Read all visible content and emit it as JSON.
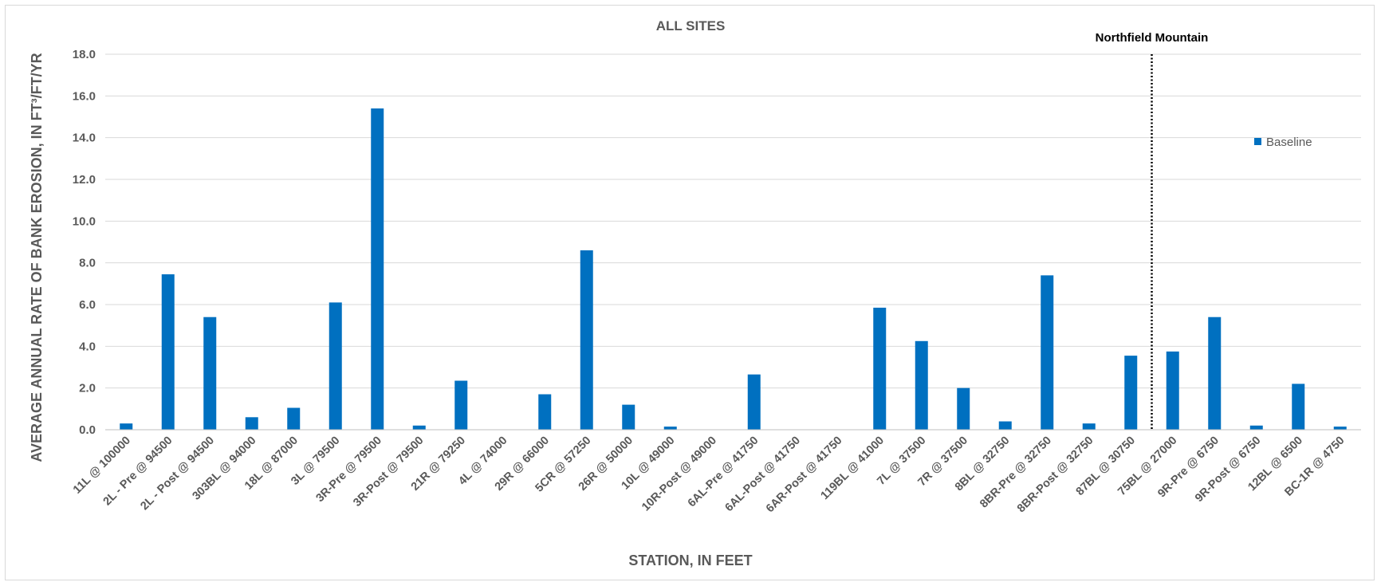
{
  "chart_data": {
    "type": "bar",
    "title": "ALL SITES",
    "xlabel": "STATION, IN FEET",
    "ylabel": "AVERAGE ANNUAL RATE OF BANK EROSION, IN FT³/FT/YR",
    "ylim": [
      0,
      18
    ],
    "yticks": [
      0,
      2,
      4,
      6,
      8,
      10,
      12,
      14,
      16,
      18
    ],
    "ytick_labels": [
      "0.0",
      "2.0",
      "4.0",
      "6.0",
      "8.0",
      "10.0",
      "12.0",
      "14.0",
      "16.0",
      "18.0"
    ],
    "grid": true,
    "legend_position": "right",
    "bar_color": "#0070c0",
    "categories": [
      "11L @ 100000",
      "2L - Pre @ 94500",
      "2L - Post @ 94500",
      "303BL @ 94000",
      "18L @ 87000",
      "3L @ 79500",
      "3R-Pre @ 79500",
      "3R-Post @ 79500",
      "21R @ 79250",
      "4L @ 74000",
      "29R @ 66000",
      "5CR @ 57250",
      "26R @ 50000",
      "10L @ 49000",
      "10R-Post @ 49000",
      "6AL-Pre @ 41750",
      "6AL-Post @ 41750",
      "6AR-Post @ 41750",
      "119BL @ 41000",
      "7L @ 37500",
      "7R @ 37500",
      "8BL @ 32750",
      "8BR-Pre @ 32750",
      "8BR-Post @ 32750",
      "87BL @ 30750",
      "75BL @ 27000",
      "9R-Pre @ 6750",
      "9R-Post @ 6750",
      "12BL @ 6500",
      "BC-1R @ 4750"
    ],
    "series": [
      {
        "name": "Baseline",
        "values": [
          0.3,
          7.45,
          5.4,
          0.6,
          1.05,
          6.1,
          15.4,
          0.2,
          2.35,
          0,
          1.7,
          8.6,
          1.2,
          0.15,
          0,
          2.65,
          0,
          0,
          5.85,
          4.25,
          2.0,
          0.4,
          7.4,
          0.3,
          3.55,
          3.75,
          5.4,
          0.2,
          2.2,
          0.15
        ]
      }
    ],
    "annotations": [
      {
        "text": "Northfield Mountain",
        "type": "vertical-dotted-line",
        "between_categories": [
          "87BL @ 30750",
          "75BL @ 27000"
        ]
      }
    ]
  }
}
